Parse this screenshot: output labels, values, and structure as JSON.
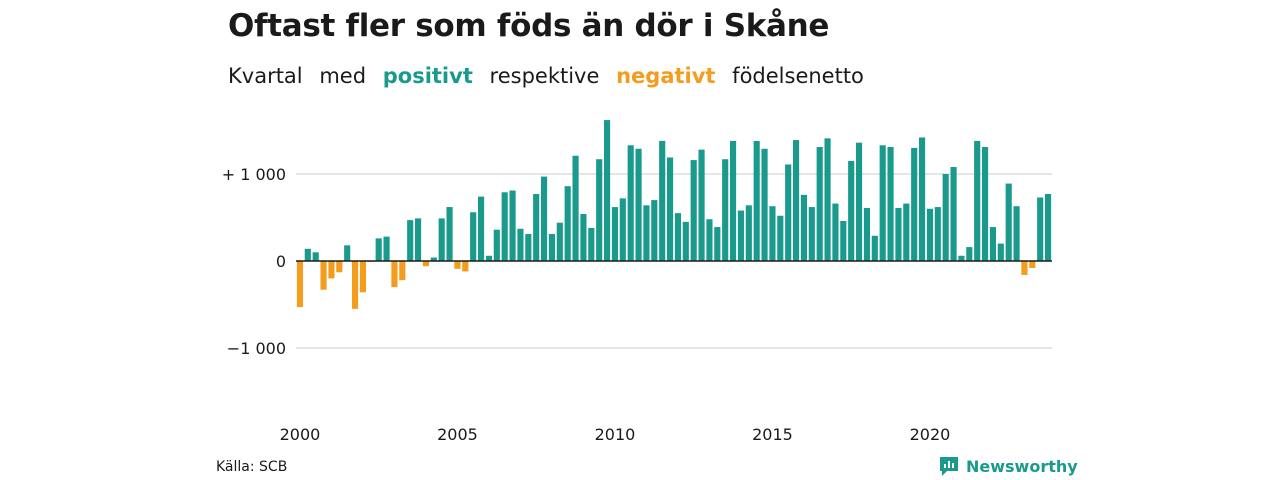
{
  "header": {
    "title": "Oftast fler som föds än dör i Skåne",
    "subtitle_pre": "Kvartal",
    "subtitle_med": "med",
    "subtitle_positive": "positivt",
    "subtitle_mid": "respektive",
    "subtitle_negative": "negativt",
    "subtitle_post": "födelsenetto"
  },
  "footer": {
    "source": "Källa: SCB",
    "brand": "Newsworthy"
  },
  "colors": {
    "positive": "#1a9a8c",
    "negative": "#f39c1d",
    "grid": "#dddddd",
    "zero_line": "#1a1a1a"
  },
  "chart_data": {
    "type": "bar",
    "x_start": "2000 Q1",
    "frequency": "quarterly",
    "ylim": [
      -1300,
      1700
    ],
    "yticks": [
      {
        "value": 1000,
        "label": "+ 1 000"
      },
      {
        "value": 0,
        "label": "0"
      },
      {
        "value": -1000,
        "label": "−1 000"
      }
    ],
    "xticks": [
      {
        "value": 2000,
        "label": "2000"
      },
      {
        "value": 2005,
        "label": "2005"
      },
      {
        "value": 2010,
        "label": "2010"
      },
      {
        "value": 2015,
        "label": "2015"
      },
      {
        "value": 2020,
        "label": "2020"
      }
    ],
    "values": [
      -530,
      140,
      100,
      -330,
      -200,
      -130,
      180,
      -550,
      -360,
      -10,
      260,
      280,
      -300,
      -220,
      470,
      490,
      -60,
      40,
      490,
      620,
      -90,
      -120,
      560,
      740,
      60,
      360,
      790,
      810,
      370,
      310,
      770,
      970,
      310,
      440,
      860,
      1210,
      540,
      380,
      1170,
      1620,
      620,
      720,
      1330,
      1290,
      640,
      700,
      1380,
      1190,
      550,
      450,
      1160,
      1280,
      480,
      390,
      1170,
      1380,
      580,
      640,
      1380,
      1290,
      630,
      520,
      1110,
      1390,
      760,
      620,
      1310,
      1410,
      660,
      460,
      1150,
      1360,
      610,
      290,
      1330,
      1310,
      610,
      660,
      1300,
      1420,
      600,
      620,
      1000,
      1080,
      60,
      160,
      1380,
      1310,
      390,
      200,
      890,
      630,
      -160,
      -80,
      730,
      770
    ]
  }
}
